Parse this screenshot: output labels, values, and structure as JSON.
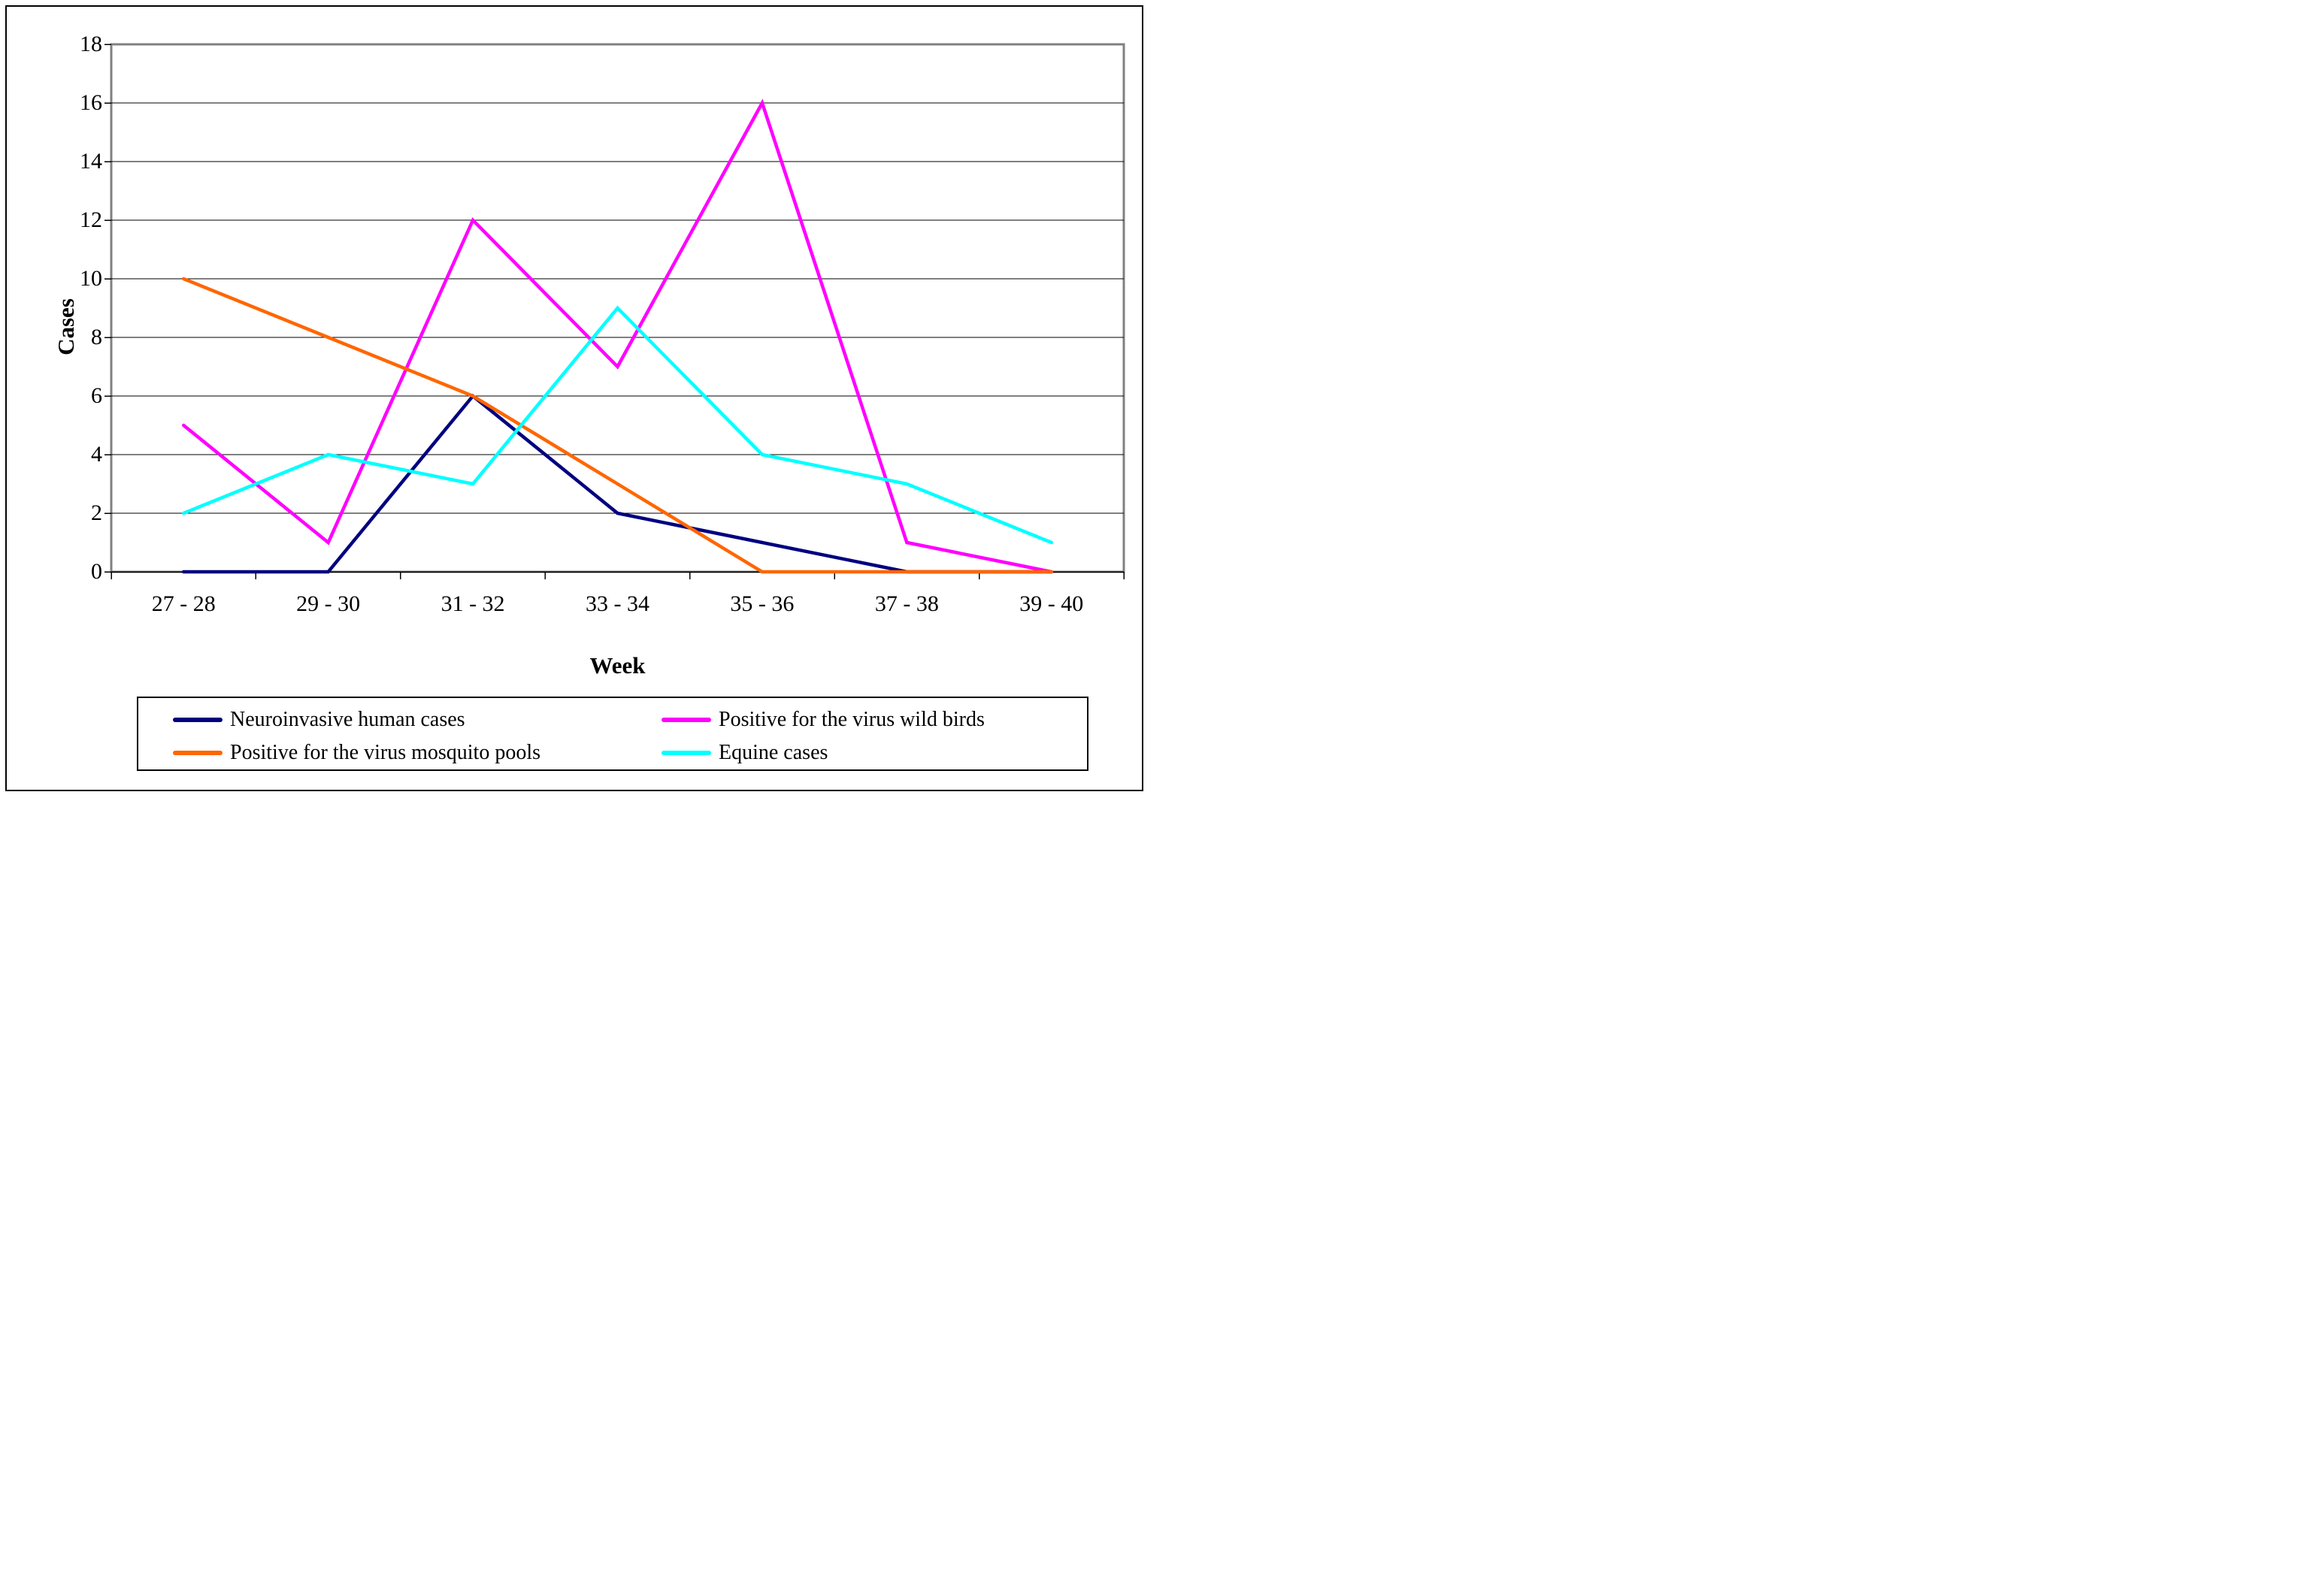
{
  "chart_data": {
    "type": "line",
    "title": "",
    "xlabel": "Week",
    "ylabel": "Cases",
    "categories": [
      "27 - 28",
      "29 - 30",
      "31 - 32",
      "33 - 34",
      "35 - 36",
      "37 - 38",
      "39 - 40"
    ],
    "ylim": [
      0,
      18
    ],
    "ytick_step": 2,
    "ytick_labels": [
      "0",
      "2",
      "4",
      "6",
      "8",
      "10",
      "12",
      "14",
      "16",
      "18"
    ],
    "grid": "horizontal-on",
    "legend_position": "bottom",
    "series": [
      {
        "name": "Neuroinvasive human cases",
        "color": "#000080",
        "values": [
          0,
          0,
          6,
          2,
          1,
          0,
          0
        ]
      },
      {
        "name": "Positive for the virus wild birds",
        "color": "#FF00FF",
        "values": [
          5,
          1,
          12,
          7,
          16,
          1,
          0
        ]
      },
      {
        "name": "Positive for the virus mosquito pools",
        "color": "#FF6600",
        "values": [
          10,
          8,
          6,
          3,
          0,
          0,
          0
        ]
      },
      {
        "name": "Equine cases",
        "color": "#00FFFF",
        "values": [
          2,
          4,
          3,
          9,
          4,
          3,
          1
        ]
      }
    ],
    "colors": {
      "plot_border": "#808080",
      "gridline": "#000000",
      "axis_line": "#000000",
      "background": "#FFFFFF"
    }
  }
}
